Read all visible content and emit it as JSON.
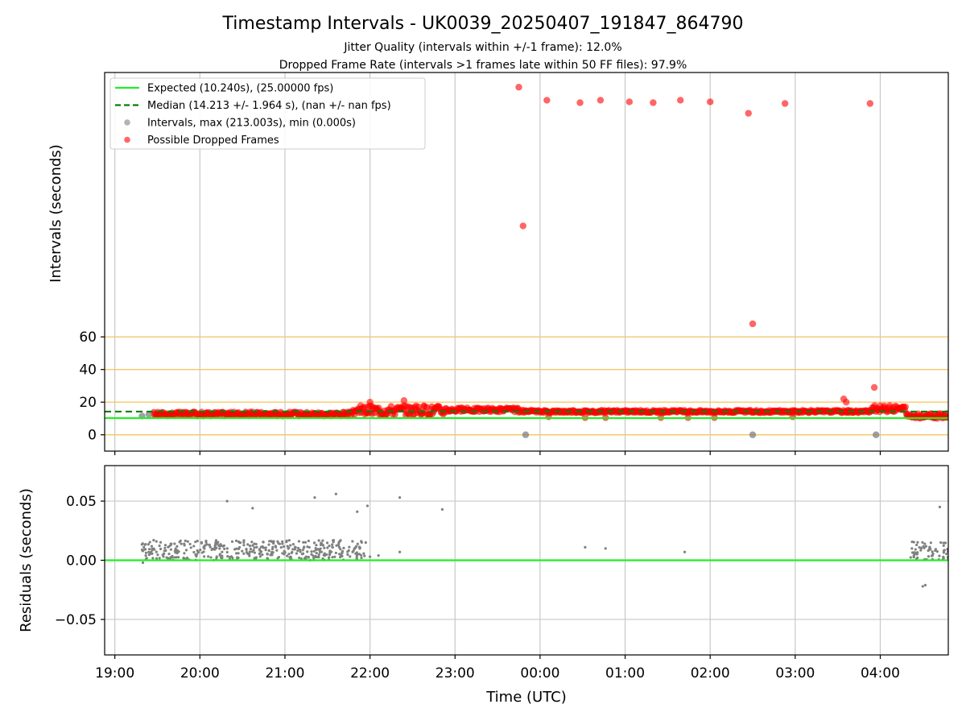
{
  "figure": {
    "title": "Timestamp Intervals - UK0039_20250407_191847_864790",
    "subtitle_1": "Jitter Quality (intervals within +/-1 frame): 12.0%",
    "subtitle_2": "Dropped Frame Rate (intervals >1 frames late within 50 FF files): 97.9%"
  },
  "colors": {
    "expected": "#22ee22",
    "median": "#008000",
    "intervals": "#808080",
    "dropped": "#ff0000",
    "reference_line": "#f5c86a",
    "grid": "#c8c8c8"
  },
  "chart_data": [
    {
      "type": "scatter",
      "panel": "top",
      "ylabel": "Intervals (seconds)",
      "xlabel": "",
      "x_unit": "hours since 19:00 UTC (2025-04-07)",
      "xlim": [
        -0.12,
        9.8
      ],
      "ylim": [
        -10,
        222
      ],
      "yticks": [
        0,
        20,
        40,
        60
      ],
      "reference_lines_y": [
        0,
        20,
        40,
        60
      ],
      "grid": "vertical",
      "legend_position": "top-left",
      "legend": [
        "Expected (10.240s), (25.00000 fps)",
        "Median (14.213 +/- 1.964 s), (nan +/- nan fps)",
        "Intervals, max (213.003s), min (0.000s)",
        "Possible Dropped Frames"
      ],
      "expected_value": 10.24,
      "median_value": 14.213,
      "series": [
        {
          "name": "Possible Dropped Frames",
          "points": [
            [
              4.75,
              213
            ],
            [
              5.08,
              205
            ],
            [
              5.47,
              203.5
            ],
            [
              5.71,
              205
            ],
            [
              6.05,
              204
            ],
            [
              6.33,
              203.5
            ],
            [
              6.65,
              205
            ],
            [
              7.0,
              204
            ],
            [
              7.45,
              197
            ],
            [
              7.88,
              203
            ],
            [
              8.88,
              203
            ],
            [
              4.8,
              128
            ],
            [
              7.5,
              68
            ],
            [
              8.93,
              29
            ],
            [
              8.57,
              22
            ],
            [
              8.6,
              20
            ],
            [
              8.62,
              15
            ],
            [
              3.0,
              20
            ],
            [
              3.4,
              21
            ],
            [
              5.1,
              11
            ],
            [
              5.53,
              10.5
            ],
            [
              5.77,
              10.5
            ],
            [
              6.42,
              10.5
            ],
            [
              6.74,
              10.5
            ],
            [
              7.05,
              10.5
            ],
            [
              7.97,
              11
            ]
          ]
        },
        {
          "name": "Intervals, max (213.003s), min (0.000s)",
          "points": [
            [
              4.83,
              0
            ],
            [
              7.5,
              0
            ],
            [
              8.95,
              0
            ],
            [
              0.32,
              11.5
            ],
            [
              0.4,
              12.5
            ]
          ]
        }
      ],
      "dense_bands": [
        {
          "x_start": 0.45,
          "x_end": 2.8,
          "y_low": 11.5,
          "y_high": 14
        },
        {
          "x_start": 2.8,
          "x_end": 3.9,
          "y_low": 12,
          "y_high": 18
        },
        {
          "x_start": 3.9,
          "x_end": 4.75,
          "y_low": 14,
          "y_high": 16.5
        },
        {
          "x_start": 4.75,
          "x_end": 8.9,
          "y_low": 13.5,
          "y_high": 15
        },
        {
          "x_start": 8.9,
          "x_end": 9.3,
          "y_low": 14,
          "y_high": 18
        },
        {
          "x_start": 9.3,
          "x_end": 9.8,
          "y_low": 10,
          "y_high": 13
        }
      ]
    },
    {
      "type": "scatter",
      "panel": "bottom",
      "ylabel": "Residuals (seconds)",
      "xlabel": "Time (UTC)",
      "x_unit": "hours since 19:00 UTC (2025-04-07)",
      "xlim": [
        -0.12,
        9.8
      ],
      "ylim": [
        -0.08,
        0.08
      ],
      "yticks": [
        -0.05,
        0.0,
        0.05
      ],
      "ytick_labels": [
        "−0.05",
        "0.00",
        "0.05"
      ],
      "xticks": [
        0,
        1,
        2,
        3,
        4,
        5,
        6,
        7,
        8,
        9
      ],
      "xtick_labels": [
        "19:00",
        "20:00",
        "21:00",
        "22:00",
        "23:00",
        "00:00",
        "01:00",
        "02:00",
        "03:00",
        "04:00"
      ],
      "grid": "both",
      "zero_line": 0.0,
      "series": [
        {
          "name": "",
          "points": [
            [
              1.32,
              0.05
            ],
            [
              1.62,
              0.044
            ],
            [
              2.35,
              0.053
            ],
            [
              2.6,
              0.056
            ],
            [
              2.85,
              0.041
            ],
            [
              2.97,
              0.046
            ],
            [
              3.35,
              0.053
            ],
            [
              3.85,
              0.043
            ],
            [
              0.33,
              -0.002
            ],
            [
              5.53,
              0.011
            ],
            [
              5.77,
              0.01
            ],
            [
              6.7,
              0.007
            ],
            [
              9.5,
              -0.022
            ],
            [
              9.53,
              -0.021
            ],
            [
              9.7,
              0.045
            ],
            [
              3.35,
              0.007
            ],
            [
              3.1,
              0.004
            ],
            [
              2.9,
              0.002
            ],
            [
              2.95,
              0.015
            ],
            [
              3.0,
              0.003
            ]
          ]
        }
      ],
      "dense_bands": [
        {
          "x_start": 0.3,
          "x_end": 2.1,
          "y_low": 0.0,
          "y_high": 0.017
        },
        {
          "x_start": 2.1,
          "x_end": 2.95,
          "y_low": 0.0,
          "y_high": 0.017
        },
        {
          "x_start": 9.35,
          "x_end": 9.8,
          "y_low": 0.0,
          "y_high": 0.016
        }
      ]
    }
  ]
}
